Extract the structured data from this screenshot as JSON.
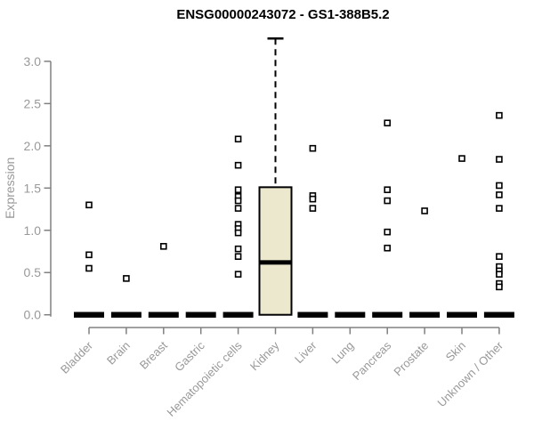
{
  "chart_data": {
    "type": "boxplot",
    "title": "ENSG00000243072 - GS1-388B5.2",
    "ylabel": "Expression",
    "xlabel": "",
    "ylim": [
      0,
      3.3
    ],
    "yticks": [
      0.0,
      0.5,
      1.0,
      1.5,
      2.0,
      2.5,
      3.0
    ],
    "grid": false,
    "legend": "none",
    "colors": {
      "box_fill": "#ece8ce",
      "box_border": "#000000",
      "median": "#000000",
      "axis_line": "#808080",
      "tick_label": "#999999",
      "title": "#000000",
      "outlier_fill": "#ffffff",
      "outlier_border": "#000000"
    },
    "categories": [
      "Bladder",
      "Brain",
      "Breast",
      "Gastric",
      "Hematopoietic cells",
      "Kidney",
      "Liver",
      "Lung",
      "Pancreas",
      "Prostate",
      "Skin",
      "Unknown / Other"
    ],
    "boxes": [
      {
        "category": "Bladder",
        "whisker_low": 0.0,
        "q1": 0.0,
        "median": 0.0,
        "q3": 0.0,
        "whisker_high": 0.0,
        "outliers": [
          1.3,
          0.71,
          0.55
        ]
      },
      {
        "category": "Brain",
        "whisker_low": 0.0,
        "q1": 0.0,
        "median": 0.0,
        "q3": 0.0,
        "whisker_high": 0.0,
        "outliers": [
          0.43
        ]
      },
      {
        "category": "Breast",
        "whisker_low": 0.0,
        "q1": 0.0,
        "median": 0.0,
        "q3": 0.0,
        "whisker_high": 0.0,
        "outliers": [
          0.81
        ]
      },
      {
        "category": "Gastric",
        "whisker_low": 0.0,
        "q1": 0.0,
        "median": 0.0,
        "q3": 0.0,
        "whisker_high": 0.0,
        "outliers": []
      },
      {
        "category": "Hematopoietic cells",
        "whisker_low": 0.0,
        "q1": 0.0,
        "median": 0.0,
        "q3": 0.0,
        "whisker_high": 0.0,
        "outliers": [
          2.08,
          1.77,
          1.48,
          1.4,
          1.35,
          1.26,
          1.07,
          1.02,
          0.97,
          0.78,
          0.69,
          0.48
        ]
      },
      {
        "category": "Kidney",
        "whisker_low": 0.0,
        "q1": 0.0,
        "median": 0.62,
        "q3": 1.51,
        "whisker_high": 3.27,
        "outliers": []
      },
      {
        "category": "Liver",
        "whisker_low": 0.0,
        "q1": 0.0,
        "median": 0.0,
        "q3": 0.0,
        "whisker_high": 0.0,
        "outliers": [
          1.97,
          1.41,
          1.37,
          1.26
        ]
      },
      {
        "category": "Lung",
        "whisker_low": 0.0,
        "q1": 0.0,
        "median": 0.0,
        "q3": 0.0,
        "whisker_high": 0.0,
        "outliers": []
      },
      {
        "category": "Pancreas",
        "whisker_low": 0.0,
        "q1": 0.0,
        "median": 0.0,
        "q3": 0.0,
        "whisker_high": 0.0,
        "outliers": [
          2.27,
          1.48,
          1.35,
          0.98,
          0.79
        ]
      },
      {
        "category": "Prostate",
        "whisker_low": 0.0,
        "q1": 0.0,
        "median": 0.0,
        "q3": 0.0,
        "whisker_high": 0.0,
        "outliers": [
          1.23
        ]
      },
      {
        "category": "Skin",
        "whisker_low": 0.0,
        "q1": 0.0,
        "median": 0.0,
        "q3": 0.0,
        "whisker_high": 0.0,
        "outliers": [
          1.85
        ]
      },
      {
        "category": "Unknown / Other",
        "whisker_low": 0.0,
        "q1": 0.0,
        "median": 0.0,
        "q3": 0.0,
        "whisker_high": 0.0,
        "outliers": [
          2.36,
          1.84,
          1.53,
          1.42,
          1.26,
          0.69,
          0.57,
          0.52,
          0.48,
          0.37,
          0.33
        ]
      }
    ]
  }
}
